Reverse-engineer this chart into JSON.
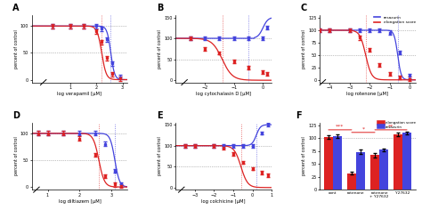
{
  "blue": "#4444dd",
  "red": "#dd2222",
  "panels": {
    "A": {
      "xlabel": "log verapamil [µM]",
      "xlim": [
        -0.5,
        3.2
      ],
      "ylim": [
        -5,
        120
      ],
      "xticks": [
        1,
        2,
        3
      ],
      "yticks": [
        0,
        50,
        100
      ],
      "blue_ec50": 2.55,
      "red_ec50": 2.2,
      "blue_hill": 6,
      "red_hill": 5,
      "blue_vline": 2.55,
      "red_vline": 2.2,
      "blue_data_x": [
        0.3,
        1.0,
        1.5,
        2.0,
        2.2,
        2.4,
        2.6,
        2.9
      ],
      "blue_data_y": [
        100,
        100,
        100,
        100,
        95,
        75,
        30,
        5
      ],
      "red_data_x": [
        0.3,
        1.0,
        1.5,
        2.0,
        2.2,
        2.4,
        2.6,
        2.9
      ],
      "red_data_y": [
        100,
        100,
        100,
        90,
        70,
        40,
        10,
        2
      ],
      "has_break": true
    },
    "B": {
      "xlabel": "log cytochalasin D [µM]",
      "xlim": [
        -3.0,
        0.3
      ],
      "ylim": [
        -5,
        155
      ],
      "xticks": [
        -2,
        -1,
        0
      ],
      "yticks": [
        0,
        50,
        100,
        150
      ],
      "blue_ec50": 0.1,
      "red_ec50": -1.4,
      "blue_hill": -4,
      "red_hill": 2.5,
      "blue_vline": -0.5,
      "red_vline": -1.4,
      "blue_data_x": [
        -2.5,
        -2.0,
        -1.5,
        -1.0,
        -0.5,
        0.0,
        0.15
      ],
      "blue_data_y": [
        100,
        100,
        100,
        100,
        100,
        100,
        125
      ],
      "red_data_x": [
        -2.5,
        -2.0,
        -1.5,
        -1.0,
        -0.5,
        0.0,
        0.15
      ],
      "red_data_y": [
        100,
        75,
        65,
        45,
        30,
        20,
        15
      ],
      "has_break": true
    },
    "C": {
      "xlabel": "log rotenone [µM]",
      "xlim": [
        -4.5,
        0.3
      ],
      "ylim": [
        -5,
        130
      ],
      "xticks": [
        -4,
        -3,
        -2,
        -1,
        0
      ],
      "yticks": [
        0,
        25,
        50,
        75,
        100,
        125
      ],
      "blue_ec50": -0.6,
      "red_ec50": -2.2,
      "blue_hill": 5,
      "red_hill": 3,
      "blue_vline": -0.6,
      "red_vline": -2.2,
      "blue_data_x": [
        -4.5,
        -4.0,
        -3.0,
        -2.5,
        -2.0,
        -1.5,
        -1.0,
        -0.5,
        0.0
      ],
      "blue_data_y": [
        100,
        100,
        100,
        100,
        100,
        100,
        95,
        55,
        8
      ],
      "red_data_x": [
        -4.5,
        -4.0,
        -3.0,
        -2.5,
        -2.0,
        -1.5,
        -1.0,
        -0.5,
        0.0
      ],
      "red_data_y": [
        100,
        100,
        100,
        85,
        60,
        30,
        12,
        5,
        2
      ],
      "has_break": true
    },
    "D": {
      "xlabel": "log diltiazem [µM]",
      "xlim": [
        0.5,
        3.5
      ],
      "ylim": [
        -5,
        120
      ],
      "xticks": [
        1,
        2,
        3
      ],
      "yticks": [
        0,
        50,
        100
      ],
      "blue_ec50": 3.1,
      "red_ec50": 2.6,
      "blue_hill": 6,
      "red_hill": 5,
      "blue_vline": 3.1,
      "red_vline": 2.6,
      "blue_data_x": [
        0.7,
        1.0,
        1.5,
        2.0,
        2.5,
        2.8,
        3.1,
        3.3
      ],
      "blue_data_y": [
        100,
        100,
        100,
        100,
        100,
        80,
        30,
        5
      ],
      "red_data_x": [
        0.7,
        1.0,
        1.5,
        2.0,
        2.5,
        2.8,
        3.1,
        3.3
      ],
      "red_data_y": [
        100,
        100,
        100,
        90,
        60,
        20,
        5,
        2
      ],
      "has_break": true
    },
    "E": {
      "xlabel": "log colchicine [µM]",
      "xlim": [
        -4.0,
        1.0
      ],
      "ylim": [
        -5,
        155
      ],
      "xticks": [
        -3,
        -2,
        -1,
        0,
        1
      ],
      "yticks": [
        0,
        50,
        100,
        150
      ],
      "blue_ec50_rise": 0.2,
      "blue_hill_rise": 4,
      "red_ec50": -0.6,
      "red_hill": 2.5,
      "blue_vline": 0.2,
      "red_vline": -0.6,
      "blue_data_x": [
        -3.5,
        -3.0,
        -2.0,
        -1.5,
        -1.0,
        -0.5,
        0.0,
        0.5,
        0.8
      ],
      "blue_data_y": [
        100,
        100,
        100,
        100,
        100,
        100,
        100,
        130,
        150
      ],
      "red_data_x": [
        -3.5,
        -3.0,
        -2.0,
        -1.5,
        -1.0,
        -0.5,
        0.0,
        0.5,
        0.8
      ],
      "red_data_y": [
        100,
        100,
        100,
        95,
        80,
        60,
        45,
        35,
        30
      ],
      "has_break": true
    }
  },
  "bar": {
    "categories": [
      "cont",
      "rotenone",
      "rotenone\n+ Y27632",
      "Y27632"
    ],
    "red_values": [
      102,
      32,
      67,
      107
    ],
    "blue_values": [
      104,
      73,
      77,
      110
    ],
    "red_err": [
      3,
      3,
      4,
      3
    ],
    "blue_err": [
      3,
      4,
      3,
      3
    ],
    "ylim": [
      0,
      130
    ],
    "yticks": [
      0,
      25,
      50,
      75,
      100,
      125
    ],
    "ylabel": "percent of control"
  }
}
